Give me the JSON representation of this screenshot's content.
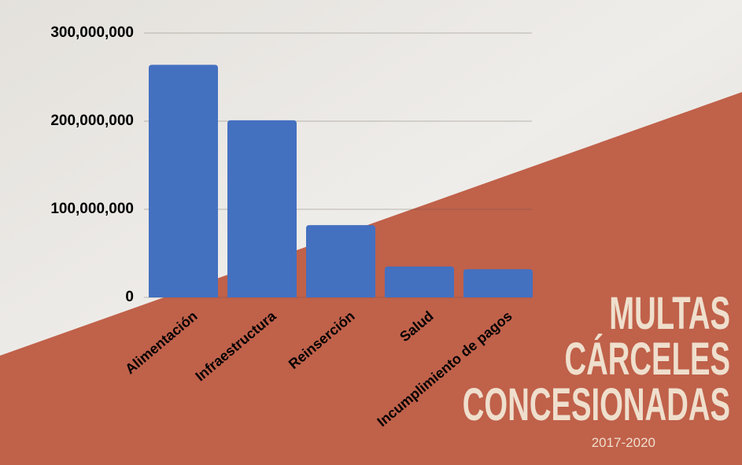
{
  "chart_data": {
    "type": "bar",
    "title_lines": [
      "MULTAS",
      "CÁRCELES",
      "CONCESIONADAS"
    ],
    "subtitle": "2017-2020",
    "categories": [
      "Alimentación",
      "Infraestructura",
      "Reinserción",
      "Salud",
      "Incumplimiento de pagos"
    ],
    "values": [
      264000000,
      201000000,
      82000000,
      35000000,
      32000000
    ],
    "color": "#4470c0",
    "ylim": [
      0,
      300000000
    ],
    "yticks": [
      0,
      {
        "value": 100000000,
        "label": "100,000,000"
      },
      {
        "value": 200000000,
        "label": "200,000,000"
      },
      {
        "value": 300000000,
        "label": "300,000,000"
      }
    ],
    "grid": true
  }
}
